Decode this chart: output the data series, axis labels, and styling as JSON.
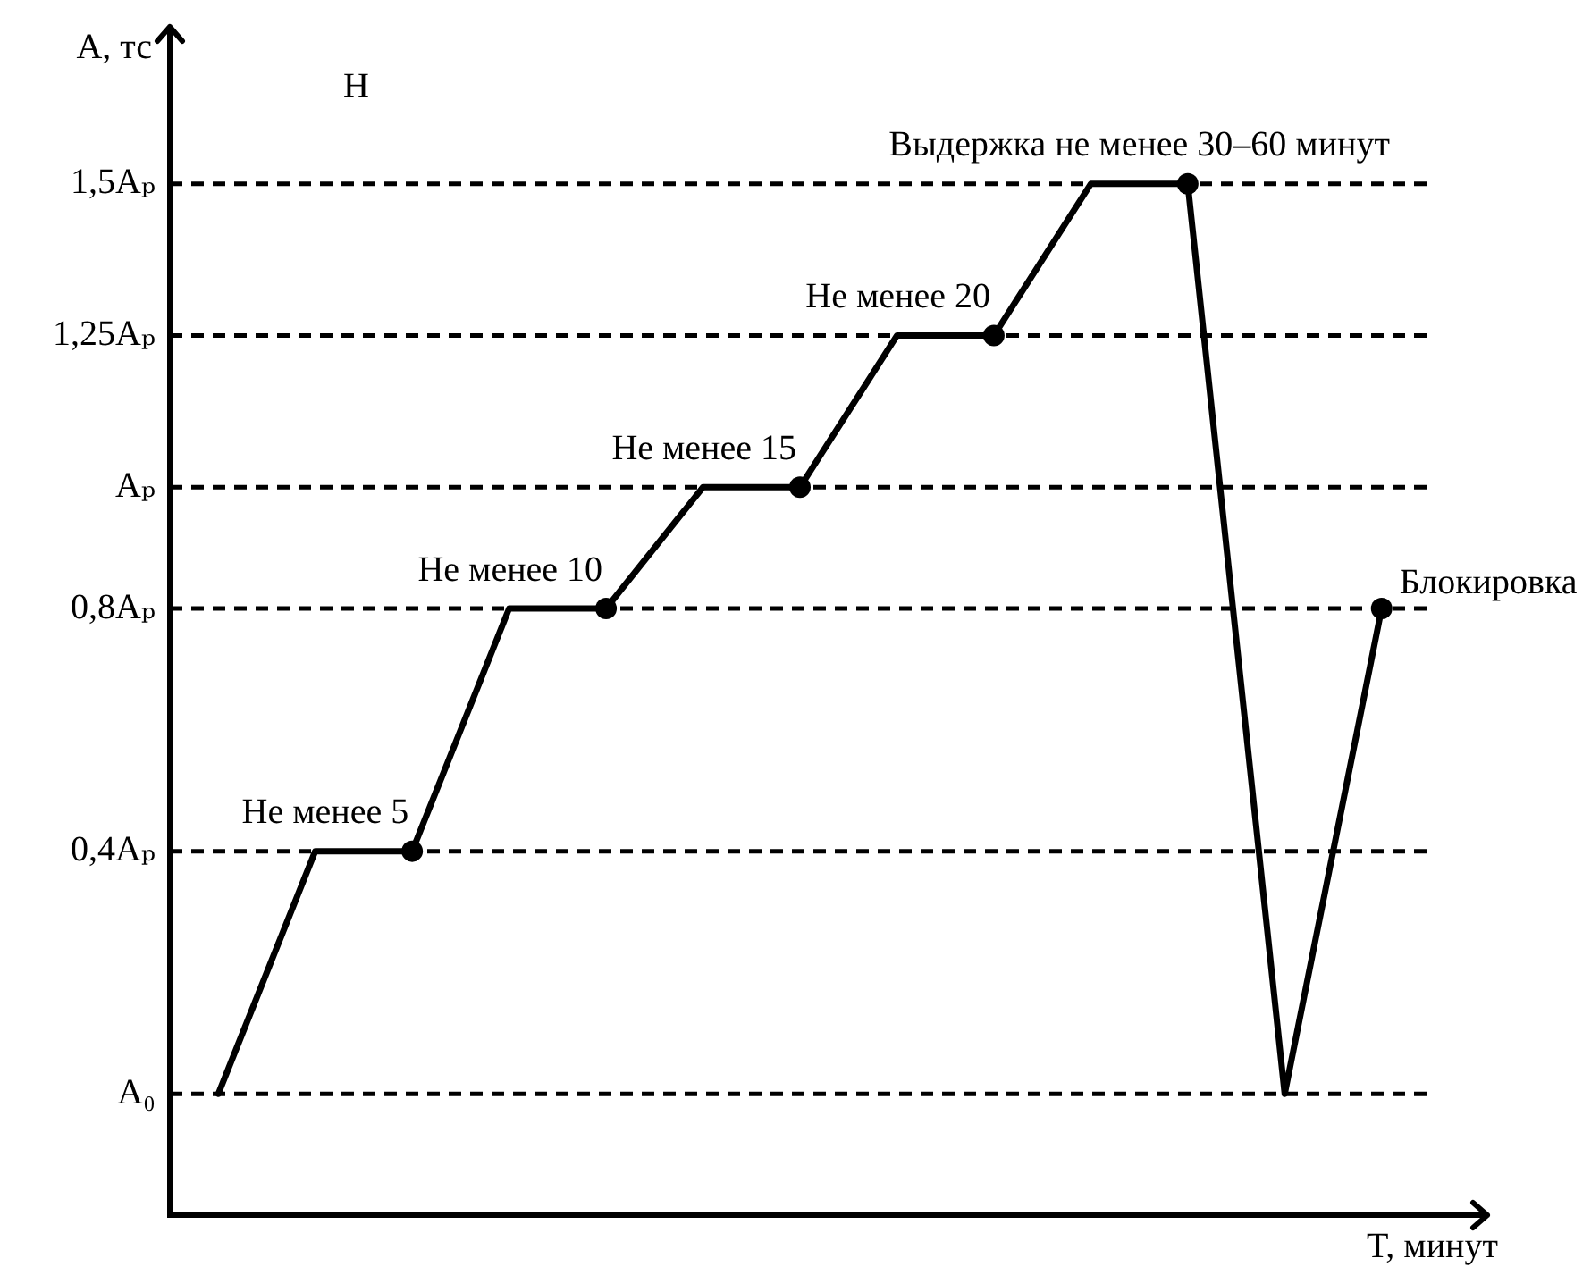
{
  "chart_data": {
    "type": "line",
    "categories": [
      null,
      null,
      null,
      null,
      null,
      null,
      null,
      null,
      null,
      null,
      null,
      null,
      null
    ],
    "series": [
      {
        "type": "line",
        "color": "#000000",
        "values": [
          0,
          0.4,
          0.4,
          0.8,
          0.8,
          1,
          1,
          1.25,
          1.25,
          1.5,
          1.5,
          0,
          0.8
        ]
      },
      {
        "type": "scatter",
        "color": "#000000",
        "marker": "circle",
        "values": [
          null,
          null,
          0.4,
          null,
          0.8,
          null,
          1,
          null,
          1.25,
          null,
          1.5,
          null,
          0.8
        ]
      }
    ],
    "xlabel": "T, минут",
    "ylabel": "A, тс",
    "ylim": [
      -0.2,
      1.7
    ],
    "yticks": [
      {
        "value": 0,
        "label": "A₀"
      },
      {
        "value": 0.4,
        "label": "0,4Aₚ"
      },
      {
        "value": 0.8,
        "label": "0,8Aₚ"
      },
      {
        "value": 1,
        "label": "Aₚ"
      },
      {
        "value": 1.25,
        "label": "1,25Aₚ"
      },
      {
        "value": 1.5,
        "label": "1,5Aₚ"
      }
    ],
    "tick_labels": "y",
    "ref_lines": [
      {
        "axis": "y",
        "value": 0,
        "line_style": "dashed",
        "color": "#000000"
      },
      {
        "axis": "y",
        "value": 0.4,
        "line_style": "dashed",
        "color": "#000000"
      },
      {
        "axis": "y",
        "value": 0.8,
        "line_style": "dashed",
        "color": "#000000"
      },
      {
        "axis": "y",
        "value": 1,
        "line_style": "dashed",
        "color": "#000000"
      },
      {
        "axis": "y",
        "value": 1.25,
        "line_style": "dashed",
        "color": "#000000"
      },
      {
        "axis": "y",
        "value": 1.5,
        "line_style": "dashed",
        "color": "#000000"
      }
    ],
    "annotations": [
      "Н",
      {
        "text": "Не менее 5",
        "y": 0.4
      },
      {
        "text": "Не менее 10",
        "y": 0.8
      },
      {
        "text": "Не менее 15",
        "y": 1
      },
      {
        "text": "Не менее 20",
        "y": 1.25
      },
      {
        "text": "Выдержка не менее 30–60 минут",
        "y": 1.5
      },
      "Блокировка"
    ]
  }
}
